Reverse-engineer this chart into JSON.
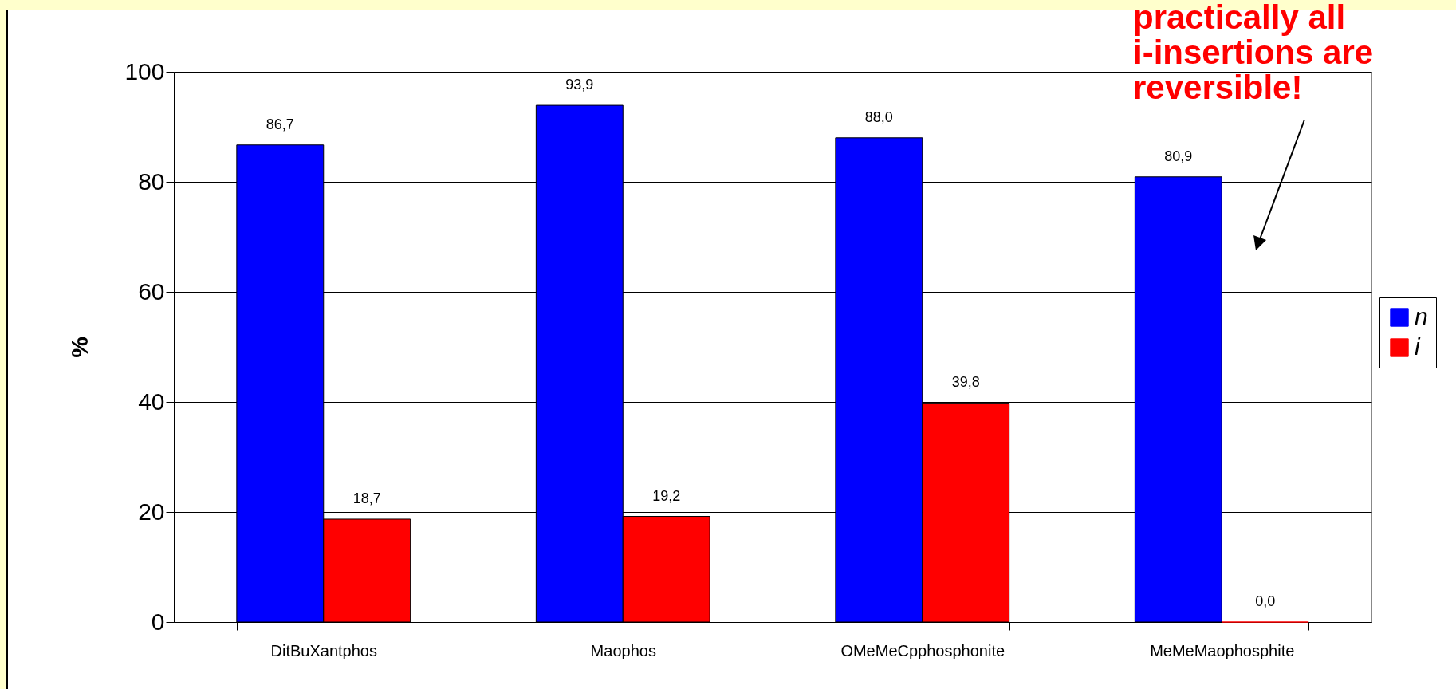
{
  "chart_data": {
    "type": "bar",
    "ylabel": "%",
    "categories": [
      "DitBuXantphos",
      "Maophos",
      "OMeMeCpphosphonite",
      "MeMeMaophosphite"
    ],
    "series": [
      {
        "name": "n",
        "color": "#0000ff",
        "values": [
          86.7,
          93.9,
          88.0,
          80.9
        ],
        "value_labels": [
          "86,7",
          "93,9",
          "88,0",
          "80,9"
        ]
      },
      {
        "name": "i",
        "color": "#ff0000",
        "values": [
          18.7,
          19.2,
          39.8,
          0.0
        ],
        "value_labels": [
          "18,7",
          "19,2",
          "39,8",
          "0,0"
        ]
      }
    ],
    "ylim": [
      0,
      100
    ],
    "yticks": [
      0,
      20,
      40,
      60,
      80,
      100
    ],
    "grid": "y",
    "legend": "right",
    "annotations": [
      "practically all i-insertions are reversible!"
    ]
  }
}
